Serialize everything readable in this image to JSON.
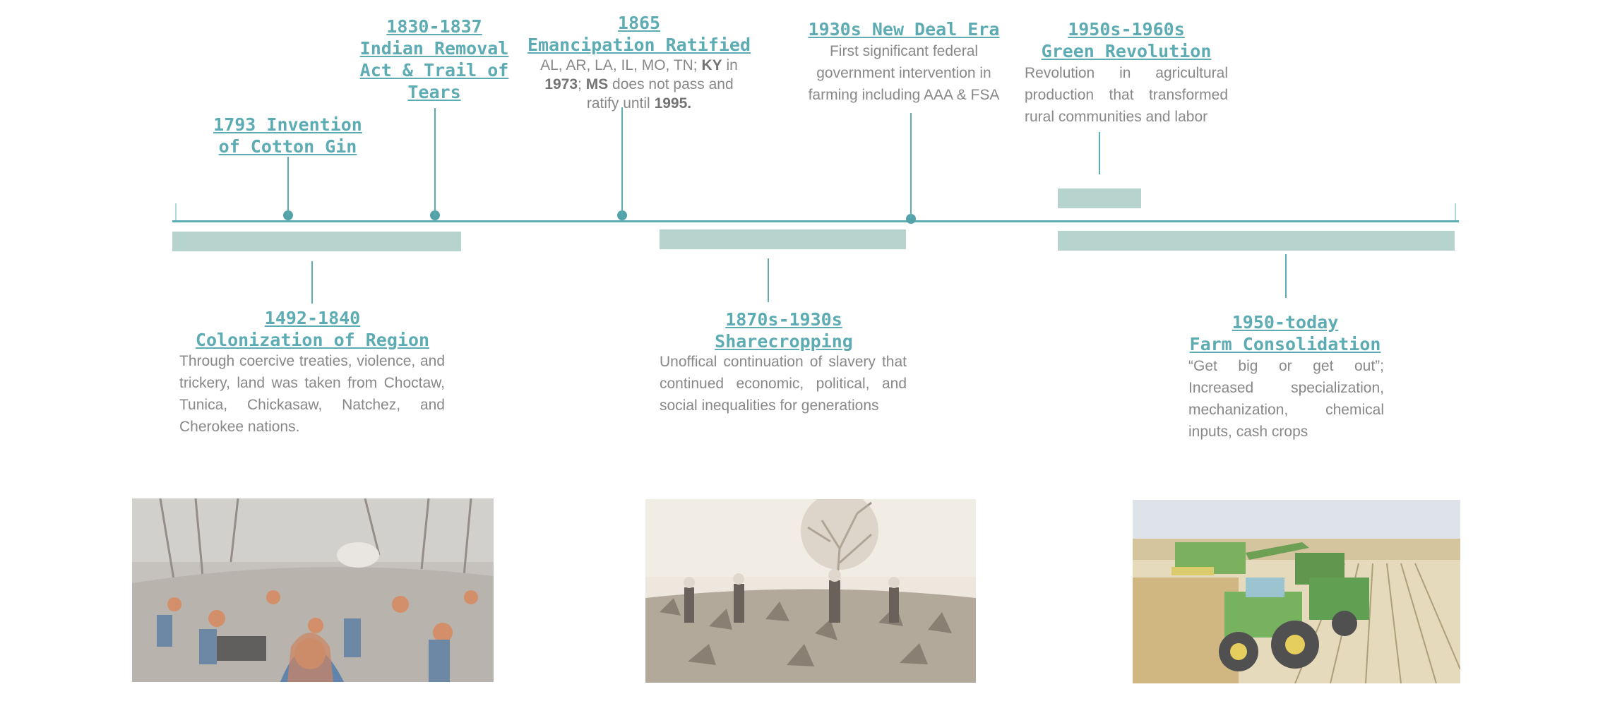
{
  "events_above": [
    {
      "id": "cotton-gin",
      "title_l1": "1793 Invention",
      "title_l2": "of Cotton Gin"
    },
    {
      "id": "indian-removal",
      "title_l1": "1830-1837",
      "title_l2": "Indian Removal",
      "title_l3": "Act & Trail of",
      "title_l4": "Tears"
    },
    {
      "id": "emancipation",
      "title_l1": "1865",
      "title_l2": "Emancipation Ratified",
      "desc_p1": "AL, AR, LA, IL, MO, TN; ",
      "desc_b1": "KY",
      "desc_p2": " in ",
      "desc_b2": "1973",
      "desc_p3": "; ",
      "desc_b3": "MS",
      "desc_p4": " does not pass and ratify until ",
      "desc_b4": "1995."
    },
    {
      "id": "new-deal",
      "title_l1": "1930s New Deal Era",
      "desc": "First significant federal government intervention in farming including AAA & FSA"
    },
    {
      "id": "green-revolution",
      "title_l1": "1950s-1960s",
      "title_l2": "Green Revolution",
      "desc": "Revolution in agricultural production that transformed rural communities and labor"
    }
  ],
  "events_below": [
    {
      "id": "colonization",
      "title_l1": "1492-1840",
      "title_l2": "Colonization of Region",
      "desc": "Through coercive treaties, violence, and trickery, land was taken from Choctaw, Tunica, Chickasaw, Natchez, and Cherokee nations."
    },
    {
      "id": "sharecropping",
      "title_l1": "1870s-1930s",
      "title_l2": "Sharecropping",
      "desc": "Unoffical continuation of slavery that continued economic, political, and social inequalities for generations"
    },
    {
      "id": "consolidation",
      "title_l1": "1950-today",
      "title_l2": "Farm Consolidation",
      "desc": "“Get big or get out”; Increased specialization, mechanization, chemical inputs, cash crops"
    }
  ],
  "colors": {
    "accent": "#3a9aa3",
    "bar": "#a6cbc2",
    "text": "#6e6e6e"
  },
  "images": [
    {
      "name": "trail-of-tears-painting-image"
    },
    {
      "name": "sharecroppers-photo-image"
    },
    {
      "name": "combine-harvester-photo-image"
    }
  ]
}
